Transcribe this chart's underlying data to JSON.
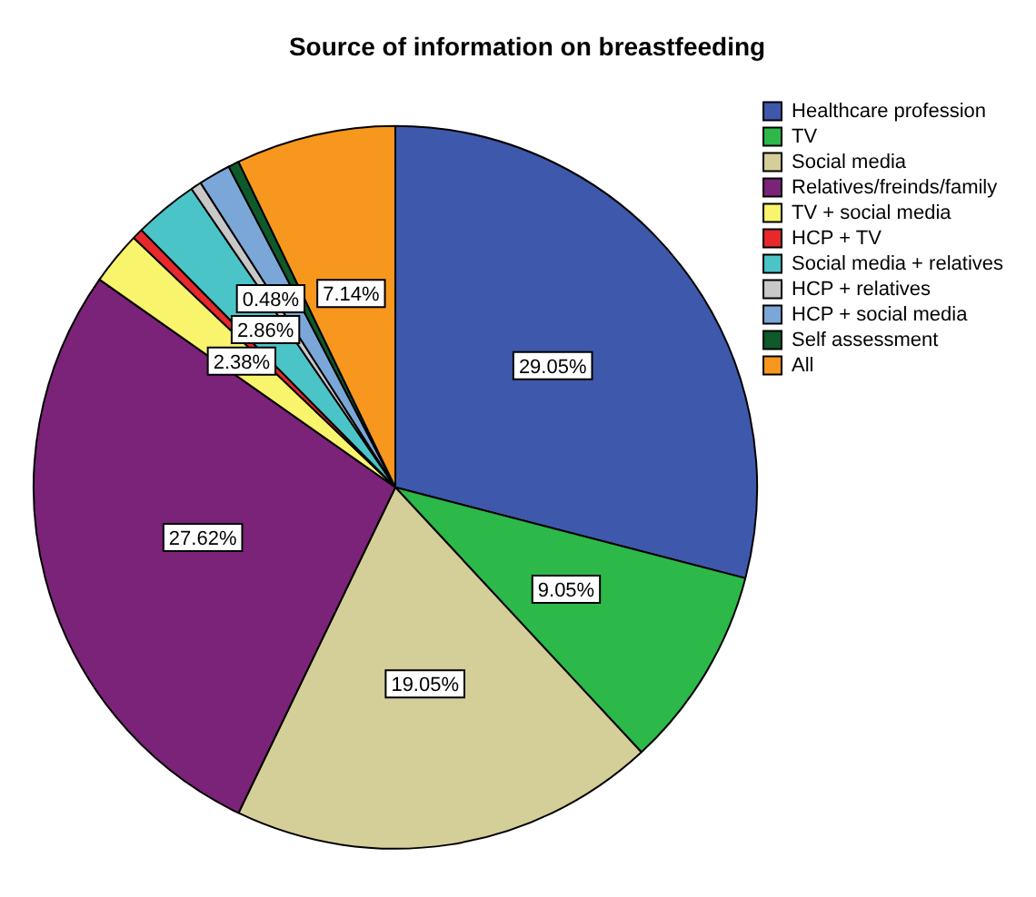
{
  "chart_data": {
    "type": "pie",
    "title": "Source of information on breastfeeding",
    "categories": [
      "Healthcare profession",
      "TV",
      "Social media",
      "Relatives/freinds/family",
      "TV + social media",
      "HCP + TV",
      "Social media + relatives",
      "HCP + relatives",
      "HCP + social media",
      "Self assessment",
      "All"
    ],
    "values": [
      29.05,
      9.05,
      19.05,
      27.62,
      2.38,
      0.48,
      2.86,
      0.48,
      1.43,
      0.48,
      7.14
    ],
    "colors": [
      "#3e58ac",
      "#2db84a",
      "#d4cf98",
      "#7b2378",
      "#f8f46c",
      "#e8292b",
      "#4bc4c8",
      "#c8c8c8",
      "#7ba7d8",
      "#0f5a2a",
      "#f7971e"
    ],
    "value_labels": [
      "29.05%",
      "9.05%",
      "19.05%",
      "27.62%",
      "2.38%",
      null,
      "2.86%",
      "0.48%",
      null,
      null,
      "7.14%"
    ],
    "legend": "top right"
  }
}
